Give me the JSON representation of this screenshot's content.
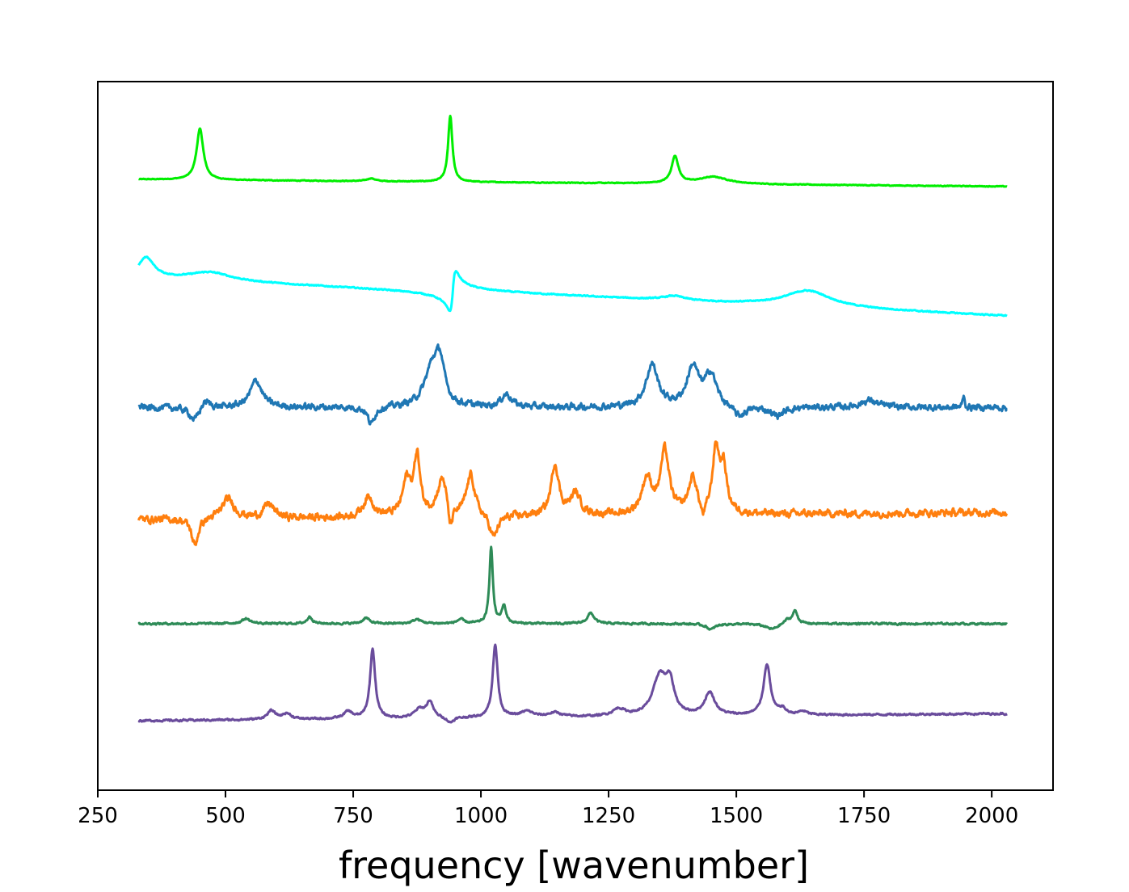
{
  "chart_data": {
    "type": "line",
    "title": "",
    "xlabel": "frequency [wavenumber]",
    "ylabel": "",
    "xlim": [
      250,
      2120
    ],
    "ylim": [
      0,
      10
    ],
    "x_ticks": [
      250,
      500,
      750,
      1000,
      1250,
      1500,
      1750,
      2000
    ],
    "x_tick_labels": [
      "250",
      "500",
      "750",
      "1000",
      "1250",
      "1500",
      "1750",
      "2000"
    ],
    "y_ticks_visible": false,
    "grid": false,
    "legend": "none",
    "x_range": [
      330,
      2030
    ],
    "series": [
      {
        "color": "#00ee00",
        "baseline": 8.62,
        "slope": -0.1,
        "tilt": "linear",
        "noise": 0.008,
        "peaks": [
          [
            450,
            0.72,
            8
          ],
          [
            785,
            0.04,
            10
          ],
          [
            940,
            0.93,
            5
          ],
          [
            1380,
            0.38,
            8
          ],
          [
            1455,
            0.1,
            35
          ]
        ]
      },
      {
        "color": "#00ffff",
        "baseline": 7.24,
        "slope": -0.55,
        "tilt": "linear",
        "noise": 0.012,
        "peaks": [
          [
            345,
            0.28,
            18
          ],
          [
            470,
            0.12,
            50
          ],
          [
            1640,
            0.23,
            55
          ],
          [
            1378,
            0.06,
            25
          ]
        ],
        "dispersive": [
          [
            945,
            0.35,
            6
          ]
        ]
      },
      {
        "color": "#1f77b4",
        "baseline": 5.4,
        "slope": 0.0,
        "tilt": "linear",
        "noise": 0.07,
        "peaks": [
          [
            460,
            0.12,
            12
          ],
          [
            560,
            0.38,
            14
          ],
          [
            905,
            0.55,
            18
          ],
          [
            920,
            0.5,
            10
          ],
          [
            1050,
            0.18,
            12
          ],
          [
            1335,
            0.6,
            14
          ],
          [
            1415,
            0.55,
            14
          ],
          [
            1450,
            0.45,
            14
          ],
          [
            1760,
            0.1,
            20
          ],
          [
            1945,
            0.18,
            2
          ]
        ],
        "dips": [
          [
            440,
            0.2,
            12
          ],
          [
            785,
            0.25,
            8
          ],
          [
            1505,
            0.15,
            15
          ],
          [
            1580,
            0.12,
            15
          ]
        ]
      },
      {
        "color": "#ff7f0e",
        "baseline": 3.82,
        "slope": 0.1,
        "tilt": "linear",
        "noise": 0.08,
        "peaks": [
          [
            505,
            0.28,
            15
          ],
          [
            585,
            0.2,
            12
          ],
          [
            780,
            0.28,
            12
          ],
          [
            855,
            0.5,
            10
          ],
          [
            875,
            0.82,
            7
          ],
          [
            925,
            0.55,
            12
          ],
          [
            980,
            0.58,
            10
          ],
          [
            1145,
            0.72,
            9
          ],
          [
            1185,
            0.3,
            12
          ],
          [
            1325,
            0.5,
            12
          ],
          [
            1360,
            0.88,
            10
          ],
          [
            1415,
            0.5,
            10
          ],
          [
            1460,
            0.88,
            8
          ],
          [
            1475,
            0.6,
            8
          ]
        ],
        "dips": [
          [
            440,
            0.38,
            8
          ],
          [
            940,
            0.35,
            6
          ],
          [
            1025,
            0.32,
            10
          ],
          [
            1435,
            0.2,
            6
          ]
        ]
      },
      {
        "color": "#2e8b57",
        "baseline": 2.35,
        "slope": 0.0,
        "tilt": "linear",
        "noise": 0.02,
        "peaks": [
          [
            540,
            0.07,
            10
          ],
          [
            665,
            0.1,
            6
          ],
          [
            775,
            0.08,
            8
          ],
          [
            875,
            0.06,
            10
          ],
          [
            960,
            0.06,
            8
          ],
          [
            1020,
            1.08,
            4
          ],
          [
            1045,
            0.25,
            5
          ],
          [
            1215,
            0.15,
            8
          ],
          [
            1600,
            0.06,
            8
          ],
          [
            1615,
            0.18,
            6
          ]
        ],
        "dips": [
          [
            1450,
            0.08,
            10
          ],
          [
            1570,
            0.08,
            15
          ]
        ]
      },
      {
        "color": "#6a4c9c",
        "baseline": 0.98,
        "slope": 0.1,
        "tilt": "linear",
        "noise": 0.02,
        "peaks": [
          [
            590,
            0.12,
            10
          ],
          [
            620,
            0.08,
            10
          ],
          [
            740,
            0.1,
            10
          ],
          [
            788,
            0.98,
            6
          ],
          [
            880,
            0.12,
            12
          ],
          [
            900,
            0.22,
            8
          ],
          [
            1028,
            1.02,
            6
          ],
          [
            1090,
            0.08,
            15
          ],
          [
            1145,
            0.06,
            15
          ],
          [
            1270,
            0.1,
            15
          ],
          [
            1350,
            0.55,
            16
          ],
          [
            1370,
            0.4,
            10
          ],
          [
            1448,
            0.32,
            12
          ],
          [
            1560,
            0.72,
            8
          ],
          [
            1590,
            0.08,
            8
          ],
          [
            1630,
            0.05,
            10
          ]
        ],
        "dips": [
          [
            940,
            0.08,
            8
          ]
        ]
      }
    ]
  }
}
